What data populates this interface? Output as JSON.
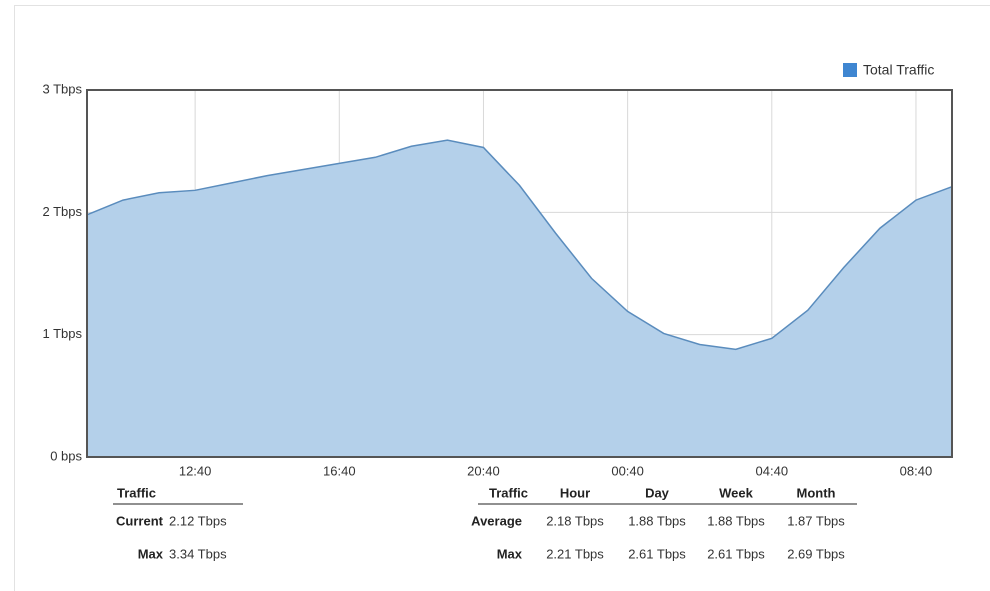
{
  "chart_data": {
    "type": "area",
    "categories": [
      null,
      null,
      null,
      "12:40",
      null,
      null,
      null,
      "16:40",
      null,
      null,
      null,
      "20:40",
      null,
      null,
      null,
      "00:40",
      null,
      null,
      null,
      "04:40",
      null,
      null,
      null,
      "08:40",
      null
    ],
    "series": [
      {
        "name": "Total Traffic",
        "color": "#3f86d1",
        "fill": "#b4d0ea",
        "line": "#5a8cbd",
        "values": [
          1.98,
          2.1,
          2.16,
          2.18,
          2.24,
          2.3,
          2.35,
          2.4,
          2.45,
          2.54,
          2.59,
          2.53,
          2.22,
          1.83,
          1.46,
          1.19,
          1.01,
          0.92,
          0.88,
          0.97,
          1.2,
          1.55,
          1.87,
          2.1,
          2.21
        ]
      }
    ],
    "ylim": [
      0,
      3
    ],
    "yticks": [
      {
        "value": 0,
        "label": "0 bps"
      },
      {
        "value": 1,
        "label": "1 Tbps"
      },
      {
        "value": 2,
        "label": "2 Tbps"
      },
      {
        "value": 3,
        "label": "3 Tbps"
      }
    ],
    "grid": true,
    "legend": "top-right"
  },
  "tables": [
    {
      "header": [
        "Traffic"
      ],
      "rows": [
        [
          "Current",
          "2.12 Tbps"
        ],
        [
          "Max",
          "3.34 Tbps"
        ]
      ]
    },
    {
      "header": [
        "Traffic",
        "Hour",
        "Day",
        "Week",
        "Month"
      ],
      "rows": [
        [
          "Average",
          "2.18 Tbps",
          "1.88 Tbps",
          "1.88 Tbps",
          "1.87 Tbps"
        ],
        [
          "Max",
          "2.21 Tbps",
          "2.61 Tbps",
          "2.61 Tbps",
          "2.69 Tbps"
        ]
      ]
    }
  ]
}
